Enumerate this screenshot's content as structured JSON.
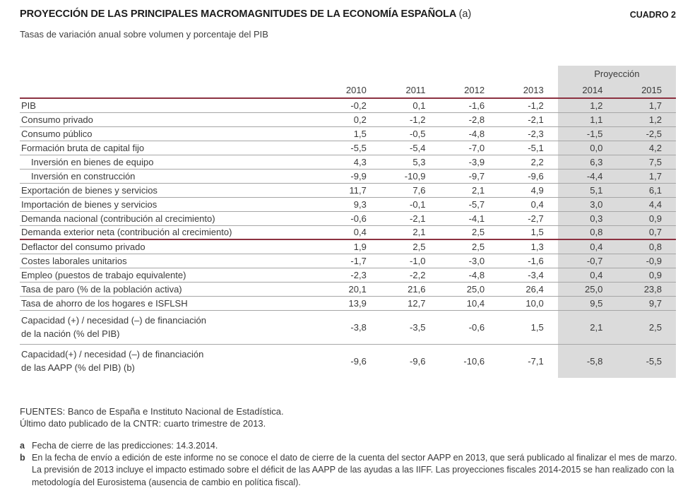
{
  "header": {
    "title": "PROYECCIÓN DE LAS PRINCIPALES MACROMAGNITUDES DE LA ECONOMÍA ESPAÑOLA",
    "title_note_ref": "(a)",
    "corner_label": "CUADRO 2",
    "subtitle": "Tasas de variación anual sobre volumen y porcentaje del PIB"
  },
  "table": {
    "projection_header": "Proyección",
    "years": [
      "2010",
      "2011",
      "2012",
      "2013",
      "2014",
      "2015"
    ],
    "projection_year_start_index": 4,
    "rows": [
      {
        "label": "PIB",
        "indent": false,
        "values": [
          "-0,2",
          "0,1",
          "-1,6",
          "-1,2",
          "1,2",
          "1,7"
        ]
      },
      {
        "label": "Consumo privado",
        "indent": false,
        "values": [
          "0,2",
          "-1,2",
          "-2,8",
          "-2,1",
          "1,1",
          "1,2"
        ]
      },
      {
        "label": "Consumo público",
        "indent": false,
        "values": [
          "1,5",
          "-0,5",
          "-4,8",
          "-2,3",
          "-1,5",
          "-2,5"
        ]
      },
      {
        "label": "Formación bruta de capital fijo",
        "indent": false,
        "values": [
          "-5,5",
          "-5,4",
          "-7,0",
          "-5,1",
          "0,0",
          "4,2"
        ]
      },
      {
        "label": "Inversión en bienes de equipo",
        "indent": true,
        "values": [
          "4,3",
          "5,3",
          "-3,9",
          "2,2",
          "6,3",
          "7,5"
        ]
      },
      {
        "label": "Inversión en construcción",
        "indent": true,
        "values": [
          "-9,9",
          "-10,9",
          "-9,7",
          "-9,6",
          "-4,4",
          "1,7"
        ]
      },
      {
        "label": "Exportación de bienes y servicios",
        "indent": false,
        "values": [
          "11,7",
          "7,6",
          "2,1",
          "4,9",
          "5,1",
          "6,1"
        ]
      },
      {
        "label": "Importación de bienes y servicios",
        "indent": false,
        "values": [
          "9,3",
          "-0,1",
          "-5,7",
          "0,4",
          "3,0",
          "4,4"
        ]
      },
      {
        "label": "Demanda nacional (contribución al crecimiento)",
        "indent": false,
        "values": [
          "-0,6",
          "-2,1",
          "-4,1",
          "-2,7",
          "0,3",
          "0,9"
        ]
      },
      {
        "label": "Demanda exterior neta (contribución al crecimiento)",
        "indent": false,
        "section_end": true,
        "values": [
          "0,4",
          "2,1",
          "2,5",
          "1,5",
          "0,8",
          "0,7"
        ]
      },
      {
        "label": "Deflactor del consumo privado",
        "indent": false,
        "values": [
          "1,9",
          "2,5",
          "2,5",
          "1,3",
          "0,4",
          "0,8"
        ]
      },
      {
        "label": "Costes laborales unitarios",
        "indent": false,
        "values": [
          "-1,7",
          "-1,0",
          "-3,0",
          "-1,6",
          "-0,7",
          "-0,9"
        ]
      },
      {
        "label": "Empleo (puestos de trabajo equivalente)",
        "indent": false,
        "values": [
          "-2,3",
          "-2,2",
          "-4,8",
          "-3,4",
          "0,4",
          "0,9"
        ]
      },
      {
        "label": "Tasa de paro (% de la población activa)",
        "indent": false,
        "values": [
          "20,1",
          "21,6",
          "25,0",
          "26,4",
          "25,0",
          "23,8"
        ]
      },
      {
        "label": "Tasa de ahorro de los hogares e ISFLSH",
        "indent": false,
        "values": [
          "13,9",
          "12,7",
          "10,4",
          "10,0",
          "9,5",
          "9,7"
        ]
      },
      {
        "label": "Capacidad (+) / necesidad (–) de financiación\nde la nación (% del PIB)",
        "indent": false,
        "two_line": true,
        "values": [
          "-3,8",
          "-3,5",
          "-0,6",
          "1,5",
          "2,1",
          "2,5"
        ]
      },
      {
        "label": "Capacidad(+) / necesidad (–) de financiación\nde las AAPP (% del PIB)  (b)",
        "indent": false,
        "two_line": true,
        "values": [
          "-9,6",
          "-9,6",
          "-10,6",
          "-7,1",
          "-5,8",
          "-5,5"
        ]
      }
    ]
  },
  "footer": {
    "sources_line1": "FUENTES: Banco de España e Instituto Nacional de Estadística.",
    "sources_line2": "Último dato publicado de la CNTR: cuarto trimestre de 2013."
  },
  "notes": [
    {
      "marker": "a",
      "text": "Fecha de cierre de las predicciones: 14.3.2014."
    },
    {
      "marker": "b",
      "text": "En la fecha de envío a edición de este informe no se conoce el dato de cierre de la cuenta del sector AAPP en 2013, que será publicado al finalizar el mes de marzo. La previsión de 2013 incluye el impacto estimado sobre el déficit de las AAPP de las ayudas a las IIFF. Las proyecciones fiscales 2014-2015 se han realizado con la metodología del Eurosistema (ausencia de cambio en política fiscal)."
    }
  ],
  "colors": {
    "accent_maroon": "#8c3241",
    "projection_bg": "#dbdbdb",
    "row_divider": "#a6a6a6",
    "text": "#3a3a3a"
  }
}
